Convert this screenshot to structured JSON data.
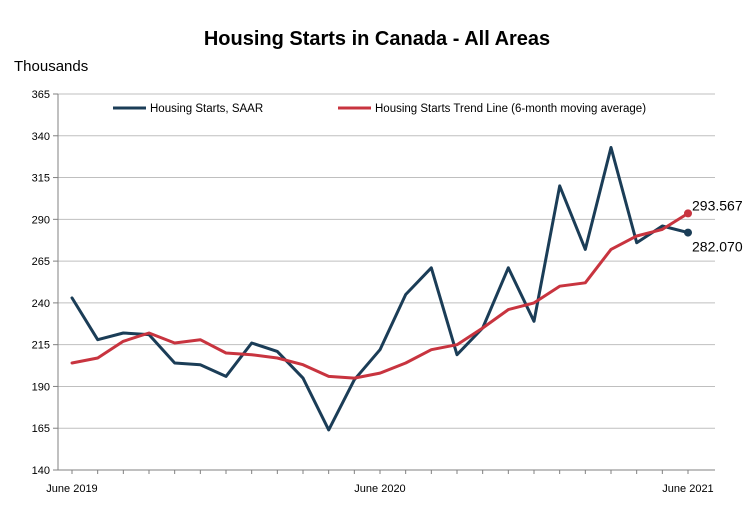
{
  "chart_data": {
    "type": "line",
    "title": "Housing Starts in Canada - All Areas",
    "ylabel": "Thousands",
    "xlabel": "",
    "ylim": [
      140,
      365
    ],
    "yticks": [
      140,
      165,
      190,
      215,
      240,
      265,
      290,
      315,
      340,
      365
    ],
    "x": [
      "2019-06",
      "2019-07",
      "2019-08",
      "2019-09",
      "2019-10",
      "2019-11",
      "2019-12",
      "2020-01",
      "2020-02",
      "2020-03",
      "2020-04",
      "2020-05",
      "2020-06",
      "2020-07",
      "2020-08",
      "2020-09",
      "2020-10",
      "2020-11",
      "2020-12",
      "2021-01",
      "2021-02",
      "2021-03",
      "2021-04",
      "2021-05",
      "2021-06"
    ],
    "xtick_labels": [
      {
        "x": "2019-06",
        "label": "June 2019"
      },
      {
        "x": "2020-06",
        "label": "June 2020"
      },
      {
        "x": "2021-06",
        "label": "June 2021"
      }
    ],
    "grid": "horizontal",
    "legend_position": "top",
    "series": [
      {
        "name": "Housing Starts, SAAR",
        "color": "#1b3d57",
        "values": [
          243,
          218,
          222,
          221,
          204,
          203,
          196,
          216,
          211,
          195,
          164,
          194,
          212,
          245,
          261,
          209,
          225,
          261,
          229,
          310,
          272,
          333,
          276,
          286,
          282.07
        ]
      },
      {
        "name": "Housing Starts Trend Line (6-month moving average)",
        "color": "#c8343f",
        "values": [
          204,
          207,
          217,
          222,
          216,
          218,
          210,
          209,
          207,
          203,
          196,
          195,
          198,
          204,
          212,
          215,
          225,
          236,
          240,
          250,
          252,
          272,
          280,
          284,
          293.567
        ]
      }
    ],
    "end_labels": [
      {
        "series": 1,
        "text": "293.567"
      },
      {
        "series": 0,
        "text": "282.070"
      }
    ]
  }
}
